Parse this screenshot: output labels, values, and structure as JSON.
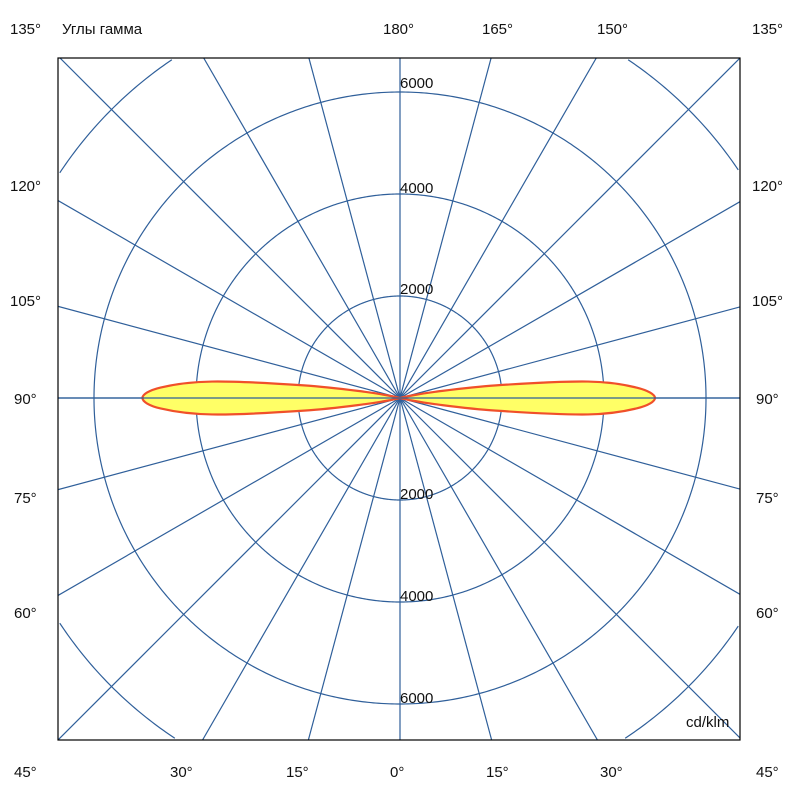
{
  "chart_data": {
    "type": "polar",
    "title": "Углы гамма",
    "unit_label": "cd/klm",
    "radial_axis": {
      "max": 8000,
      "ticks": [
        2000,
        4000,
        6000,
        8000
      ],
      "tick_labels_upper": [
        "2000",
        "4000",
        "6000"
      ],
      "tick_labels_lower": [
        "2000",
        "4000",
        "6000"
      ]
    },
    "angular_step_deg": 15,
    "left_labels": [
      "135°",
      "120°",
      "105°",
      "90°",
      "75°",
      "60°",
      "45°"
    ],
    "right_labels": [
      "135°",
      "120°",
      "105°",
      "90°",
      "75°",
      "60°",
      "45°"
    ],
    "top_labels": [
      "180°",
      "165°",
      "150°"
    ],
    "bottom_labels": [
      "30°",
      "15°",
      "0°",
      "15°",
      "30°"
    ],
    "grid": true,
    "series": [
      {
        "gamma_deg": [
          75,
          77.5,
          80,
          82.5,
          85,
          87.5,
          90,
          92.5,
          95,
          97.5,
          100,
          102.5,
          105
        ],
        "intensity_left": [
          0,
          150,
          700,
          1900,
          3700,
          4700,
          5050,
          4700,
          3700,
          1900,
          700,
          150,
          0
        ],
        "intensity_right": [
          0,
          150,
          700,
          1900,
          3700,
          4650,
          5000,
          4650,
          3700,
          1900,
          700,
          150,
          0
        ]
      }
    ],
    "colors": {
      "grid": "#2f5f9a",
      "frame": "#000000",
      "curve_stroke": "#f0502a",
      "curve_fill": "#ffff66"
    }
  }
}
